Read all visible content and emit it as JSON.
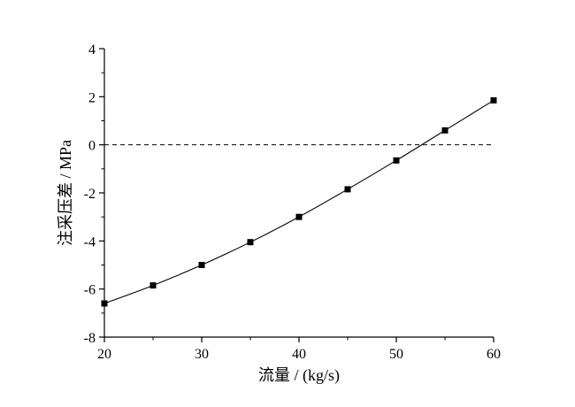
{
  "chart_data": {
    "type": "line",
    "xlabel": "流量 / (kg/s)",
    "ylabel": "注采压差 / MPa",
    "xlim": [
      20,
      60
    ],
    "ylim": [
      -8,
      4
    ],
    "xticks": [
      "20",
      "30",
      "40",
      "50",
      "60"
    ],
    "yticks": [
      "-8",
      "-6",
      "-4",
      "-2",
      "0",
      "2",
      "4"
    ],
    "grid": false,
    "series": [
      {
        "x": [
          20,
          25,
          30,
          35,
          40,
          45,
          50,
          55,
          60
        ],
        "y": [
          -6.6,
          -5.85,
          -5.0,
          -4.05,
          -3.0,
          -1.85,
          -0.65,
          0.6,
          1.85
        ],
        "marker": "square",
        "color": "#000000"
      }
    ],
    "reference_line": {
      "y": 0,
      "style": "dashed"
    }
  }
}
